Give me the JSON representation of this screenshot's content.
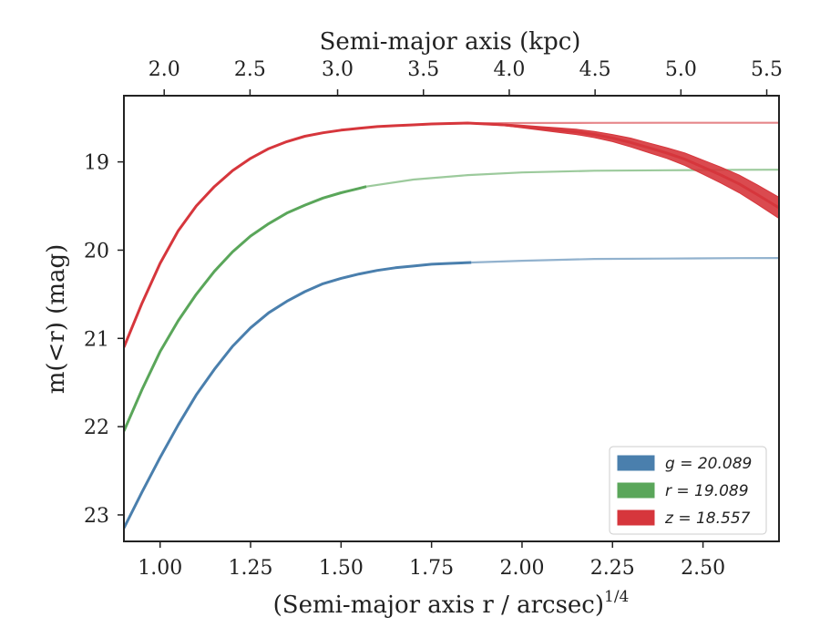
{
  "chart_data": {
    "type": "line",
    "xlabel": "(Semi-major axis r / arcsec)",
    "xlabel_sup": "1/4",
    "x2label": "Semi-major axis (kpc)",
    "ylabel": "m(<r) (mag)",
    "xlim": [
      0.9,
      2.71
    ],
    "ylim": [
      23.3,
      18.25
    ],
    "y_inverted": true,
    "x_ticks": [
      {
        "value": 1.0,
        "label": "1.00"
      },
      {
        "value": 1.25,
        "label": "1.25"
      },
      {
        "value": 1.5,
        "label": "1.50"
      },
      {
        "value": 1.75,
        "label": "1.75"
      },
      {
        "value": 2.0,
        "label": "2.00"
      },
      {
        "value": 2.25,
        "label": "2.25"
      },
      {
        "value": 2.5,
        "label": "2.50"
      }
    ],
    "x2_ticks": [
      {
        "value": 1.935,
        "label": "2.0"
      },
      {
        "value": 2.18,
        "label": "2.5"
      },
      {
        "value": 2.43,
        "label": "3.0"
      },
      {
        "value": 2.675,
        "label": "3.5"
      },
      {
        "value": 2.92,
        "label": "4.0"
      },
      {
        "value": 3.165,
        "label": "4.5"
      },
      {
        "value": 3.41,
        "label": "5.0"
      },
      {
        "value": 3.655,
        "label": "5.5"
      }
    ],
    "y_ticks": [
      {
        "value": 19,
        "label": "19"
      },
      {
        "value": 20,
        "label": "20"
      },
      {
        "value": 21,
        "label": "21"
      },
      {
        "value": 22,
        "label": "22"
      },
      {
        "value": 23,
        "label": "23"
      }
    ],
    "legend_position": "lower-right",
    "grid": false,
    "series": [
      {
        "name": "g = 20.089",
        "color": "#4a7fad",
        "asymptote": 20.089,
        "x": [
          0.9,
          0.95,
          1.0,
          1.05,
          1.1,
          1.15,
          1.2,
          1.25,
          1.3,
          1.35,
          1.4,
          1.45,
          1.5,
          1.55,
          1.6,
          1.65,
          1.7,
          1.75,
          1.8,
          1.86
        ],
        "y": [
          23.15,
          22.74,
          22.35,
          21.98,
          21.64,
          21.35,
          21.09,
          20.88,
          20.71,
          20.58,
          20.47,
          20.38,
          20.32,
          20.27,
          20.23,
          20.2,
          20.18,
          20.16,
          20.15,
          20.14
        ],
        "model_x": [
          1.86,
          2.0,
          2.2,
          2.4,
          2.6,
          2.71
        ],
        "model_y": [
          20.14,
          20.12,
          20.1,
          20.095,
          20.09,
          20.089
        ]
      },
      {
        "name": "r = 19.089",
        "color": "#5aa65a",
        "asymptote": 19.089,
        "x": [
          0.9,
          0.95,
          1.0,
          1.05,
          1.1,
          1.15,
          1.2,
          1.25,
          1.3,
          1.35,
          1.4,
          1.45,
          1.5,
          1.55,
          1.57
        ],
        "y": [
          22.05,
          21.58,
          21.15,
          20.8,
          20.5,
          20.24,
          20.02,
          19.84,
          19.7,
          19.58,
          19.49,
          19.41,
          19.35,
          19.3,
          19.28
        ],
        "model_x": [
          1.57,
          1.7,
          1.85,
          2.0,
          2.2,
          2.4,
          2.6,
          2.71
        ],
        "model_y": [
          19.28,
          19.2,
          19.15,
          19.12,
          19.1,
          19.095,
          19.09,
          19.089
        ]
      },
      {
        "name": "z = 18.557",
        "color": "#d6363c",
        "asymptote": 18.557,
        "x": [
          0.9,
          0.95,
          1.0,
          1.05,
          1.1,
          1.15,
          1.2,
          1.25,
          1.3,
          1.35,
          1.4,
          1.45,
          1.5,
          1.55,
          1.6,
          1.65,
          1.7,
          1.75,
          1.8,
          1.85,
          1.9,
          1.95,
          2.0,
          2.05,
          2.1,
          2.15,
          2.2,
          2.25,
          2.3,
          2.35,
          2.4,
          2.45,
          2.5,
          2.55,
          2.6,
          2.65,
          2.71
        ],
        "y": [
          21.1,
          20.6,
          20.15,
          19.78,
          19.5,
          19.28,
          19.1,
          18.96,
          18.85,
          18.77,
          18.71,
          18.67,
          18.64,
          18.62,
          18.6,
          18.59,
          18.58,
          18.57,
          18.565,
          18.56,
          18.57,
          18.58,
          18.6,
          18.62,
          18.64,
          18.66,
          18.69,
          18.73,
          18.78,
          18.84,
          18.9,
          18.97,
          19.06,
          19.15,
          19.25,
          19.37,
          19.52
        ],
        "band_halfwidth": [
          0,
          0,
          0,
          0,
          0,
          0,
          0,
          0,
          0,
          0,
          0,
          0,
          0,
          0,
          0,
          0,
          0,
          0,
          0,
          0.005,
          0.008,
          0.01,
          0.015,
          0.02,
          0.025,
          0.03,
          0.035,
          0.04,
          0.05,
          0.055,
          0.06,
          0.07,
          0.08,
          0.09,
          0.1,
          0.11,
          0.12
        ],
        "model_x": [
          1.8,
          2.0,
          2.2,
          2.4,
          2.6,
          2.71
        ],
        "model_y": [
          18.565,
          18.56,
          18.558,
          18.557,
          18.557,
          18.557
        ]
      }
    ]
  }
}
